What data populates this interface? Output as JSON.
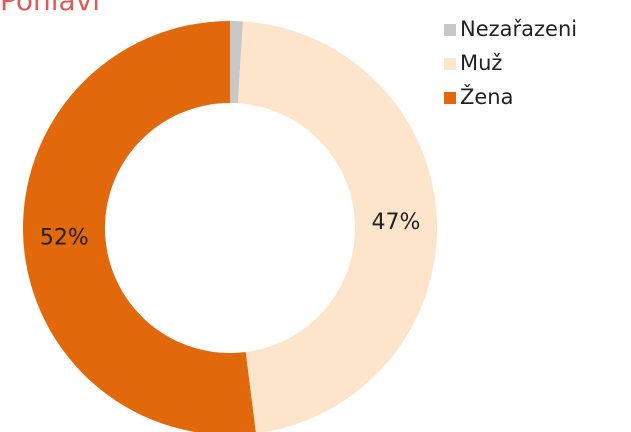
{
  "chart_data": {
    "type": "donut",
    "title": "Pohlaví",
    "categories": [
      "Nezařazeni",
      "Muž",
      "Žena"
    ],
    "values": [
      1,
      47,
      52
    ],
    "value_labels": [
      null,
      "47%",
      "52%"
    ],
    "colors": [
      "#c8c8c8",
      "#fde5cc",
      "#e2680c"
    ],
    "legend": "top-right"
  }
}
